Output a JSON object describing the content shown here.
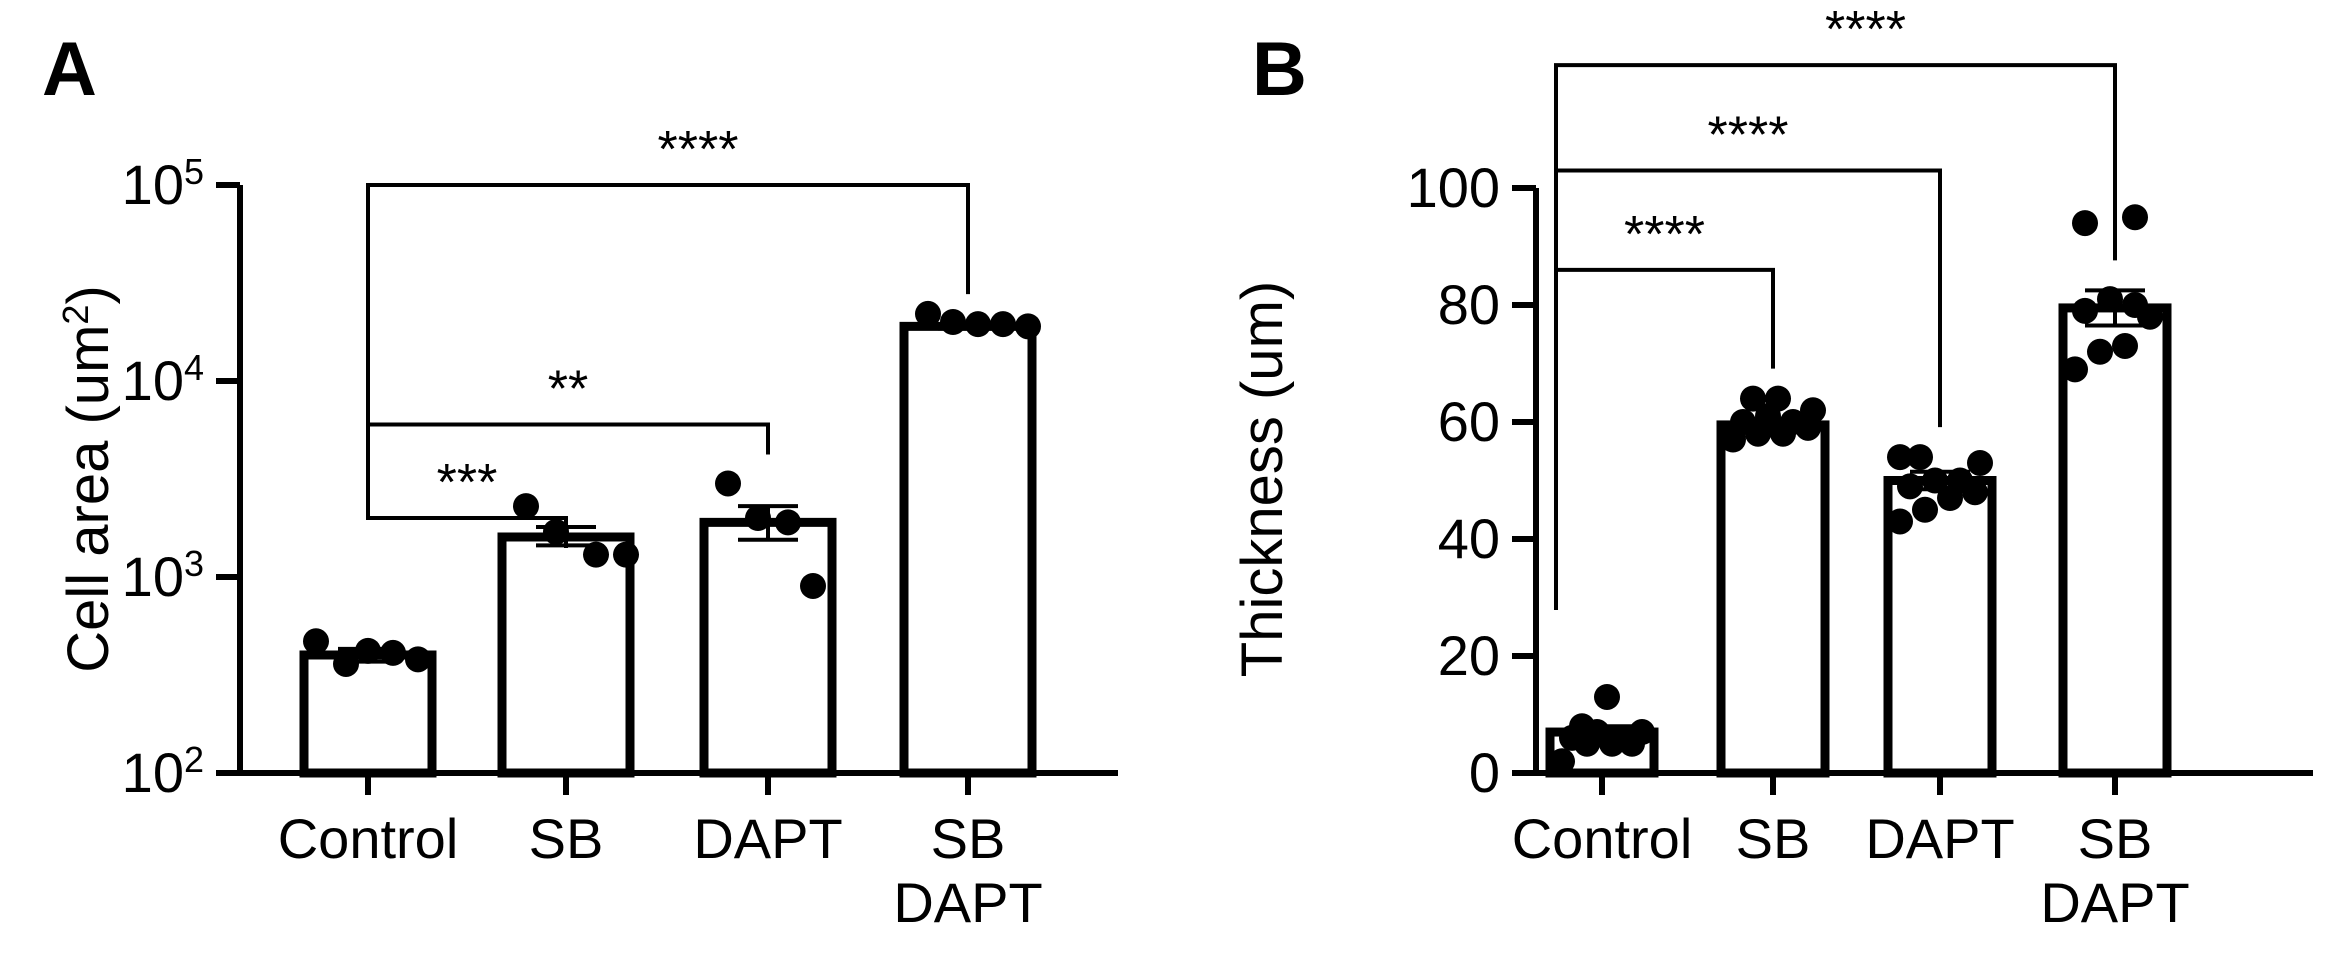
{
  "chart_data": [
    {
      "panel_label": "A",
      "type": "bar",
      "scale": "log",
      "ylim": [
        100,
        100000
      ],
      "ylabel": "Cell area (um2)",
      "ylabel_main": "Cell area (um",
      "ylabel_sup": "2",
      "ylabel_close": ")",
      "yticks": [
        {
          "value": 100,
          "base": "10",
          "exp": "2"
        },
        {
          "value": 1000,
          "base": "10",
          "exp": "3"
        },
        {
          "value": 10000,
          "base": "10",
          "exp": "4"
        },
        {
          "value": 100000,
          "base": "10",
          "exp": "5"
        }
      ],
      "categories": [
        [
          "Control"
        ],
        [
          "SB"
        ],
        [
          "DAPT"
        ],
        [
          "SB",
          "DAPT"
        ]
      ],
      "means": [
        400,
        1600,
        1900,
        19000
      ],
      "sem_low": [
        370,
        1450,
        1550,
        18500
      ],
      "sem_high": [
        430,
        1800,
        2300,
        19500
      ],
      "points": [
        [
          470,
          360,
          420,
          410,
          380
        ],
        [
          2300,
          1700,
          1300,
          1300
        ],
        [
          3000,
          2000,
          1900,
          900
        ],
        [
          22000,
          20000,
          19500,
          19500,
          19000
        ]
      ],
      "comparisons": [
        {
          "from": 0,
          "to": 1,
          "label": "***",
          "y": 2000
        },
        {
          "from": 0,
          "to": 2,
          "label": "**",
          "y": 6000
        },
        {
          "from": 0,
          "to": 3,
          "label": "****",
          "y": 100000
        }
      ]
    },
    {
      "panel_label": "B",
      "type": "bar",
      "scale": "linear",
      "ylim": [
        0,
        100
      ],
      "ylabel": "Thickness (um)",
      "ylabel_main": "Thickness (um)",
      "ylabel_sup": "",
      "ylabel_close": "",
      "yticks": [
        {
          "value": 0,
          "base": "0",
          "exp": ""
        },
        {
          "value": 20,
          "base": "20",
          "exp": ""
        },
        {
          "value": 40,
          "base": "40",
          "exp": ""
        },
        {
          "value": 60,
          "base": "60",
          "exp": ""
        },
        {
          "value": 80,
          "base": "80",
          "exp": ""
        },
        {
          "value": 100,
          "base": "100",
          "exp": ""
        }
      ],
      "categories": [
        [
          "Control"
        ],
        [
          "SB"
        ],
        [
          "DAPT"
        ],
        [
          "SB",
          "DAPT"
        ]
      ],
      "means": [
        7,
        59.5,
        50,
        79.5
      ],
      "sem_low": [
        6,
        58.5,
        48.5,
        76.5
      ],
      "sem_high": [
        8,
        60.5,
        51.5,
        82.5
      ],
      "points": [
        [
          2,
          5,
          5,
          5,
          6,
          6,
          7,
          7,
          8,
          13
        ],
        [
          57,
          58,
          58,
          59,
          60,
          60,
          61,
          62,
          64,
          64
        ],
        [
          43,
          45,
          47,
          48,
          49,
          50,
          50,
          53,
          54,
          54
        ],
        [
          69,
          72,
          73,
          78,
          79,
          80,
          81,
          94,
          95
        ]
      ],
      "comparisons": [
        {
          "from": 0,
          "to": 1,
          "label": "****",
          "y": 86
        },
        {
          "from": 0,
          "to": 2,
          "label": "****",
          "y": 103
        },
        {
          "from": 0,
          "to": 3,
          "label": "****",
          "y": 121
        }
      ]
    }
  ]
}
